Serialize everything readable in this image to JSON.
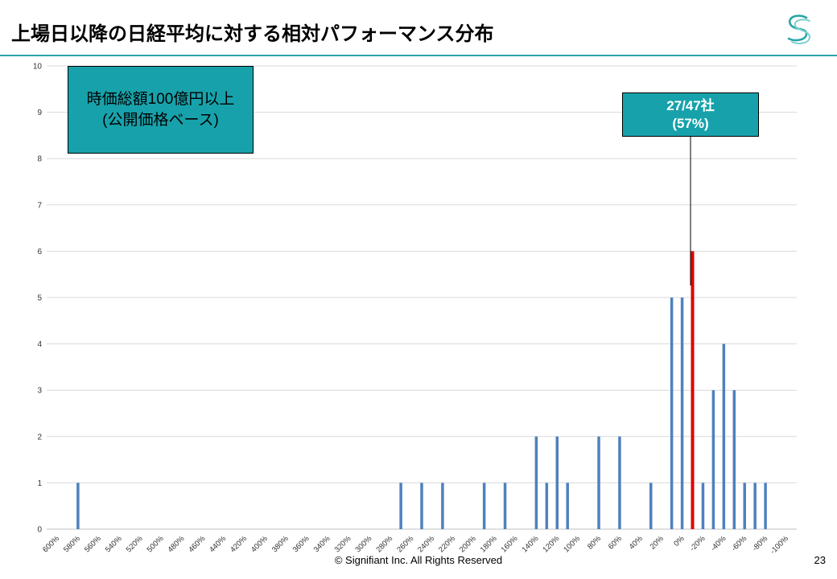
{
  "header": {
    "title": "上場日以降の日経平均に対する相対パフォーマンス分布",
    "logo_icon": "signifiant-s-logo-icon",
    "accent_color": "#2aa6a8"
  },
  "annotations": {
    "left_box_line1": "時価総額100億円以上",
    "left_box_line2": "(公開価格ベース)",
    "right_box_line1": "27/47社",
    "right_box_line2": "(57%)",
    "box_color": "#17a2ab"
  },
  "footer": {
    "copyright": "© Signifiant Inc. All Rights Reserved",
    "page_number": "23"
  },
  "chart_data": {
    "type": "bar",
    "categories": [
      "600%",
      "590%",
      "580%",
      "570%",
      "560%",
      "550%",
      "540%",
      "530%",
      "520%",
      "510%",
      "500%",
      "490%",
      "480%",
      "470%",
      "460%",
      "450%",
      "440%",
      "430%",
      "420%",
      "410%",
      "400%",
      "390%",
      "380%",
      "370%",
      "360%",
      "350%",
      "340%",
      "330%",
      "320%",
      "310%",
      "300%",
      "290%",
      "280%",
      "270%",
      "260%",
      "250%",
      "240%",
      "230%",
      "220%",
      "210%",
      "200%",
      "190%",
      "180%",
      "170%",
      "160%",
      "150%",
      "140%",
      "130%",
      "120%",
      "110%",
      "100%",
      "90%",
      "80%",
      "70%",
      "60%",
      "50%",
      "40%",
      "30%",
      "20%",
      "10%",
      "0%",
      "-10%",
      "-20%",
      "-30%",
      "-40%",
      "-50%",
      "-60%",
      "-70%",
      "-80%",
      "-90%",
      "-100%"
    ],
    "tick_labels": [
      "600%",
      "580%",
      "560%",
      "540%",
      "520%",
      "500%",
      "480%",
      "460%",
      "440%",
      "420%",
      "400%",
      "380%",
      "360%",
      "340%",
      "320%",
      "300%",
      "280%",
      "260%",
      "240%",
      "220%",
      "200%",
      "180%",
      "160%",
      "140%",
      "120%",
      "100%",
      "80%",
      "60%",
      "40%",
      "20%",
      "0%",
      "-20%",
      "-40%",
      "-60%",
      "-80%",
      "-100%"
    ],
    "values": [
      0,
      0,
      1,
      0,
      0,
      0,
      0,
      0,
      0,
      0,
      0,
      0,
      0,
      0,
      0,
      0,
      0,
      0,
      0,
      0,
      0,
      0,
      0,
      0,
      0,
      0,
      0,
      0,
      0,
      0,
      0,
      0,
      0,
      1,
      0,
      1,
      0,
      1,
      0,
      0,
      0,
      1,
      0,
      1,
      0,
      0,
      2,
      1,
      2,
      1,
      0,
      0,
      2,
      0,
      2,
      0,
      0,
      1,
      0,
      5,
      5,
      6,
      1,
      3,
      4,
      3,
      1,
      1,
      1,
      0,
      0
    ],
    "highlight_category": "-10%",
    "bar_color": "#4f81bd",
    "highlight_color": "#e00000",
    "ylim": [
      0,
      10
    ],
    "yticks": [
      0,
      1,
      2,
      3,
      4,
      5,
      6,
      7,
      8,
      9,
      10
    ],
    "grid": true,
    "xlabel": "",
    "ylabel": ""
  }
}
